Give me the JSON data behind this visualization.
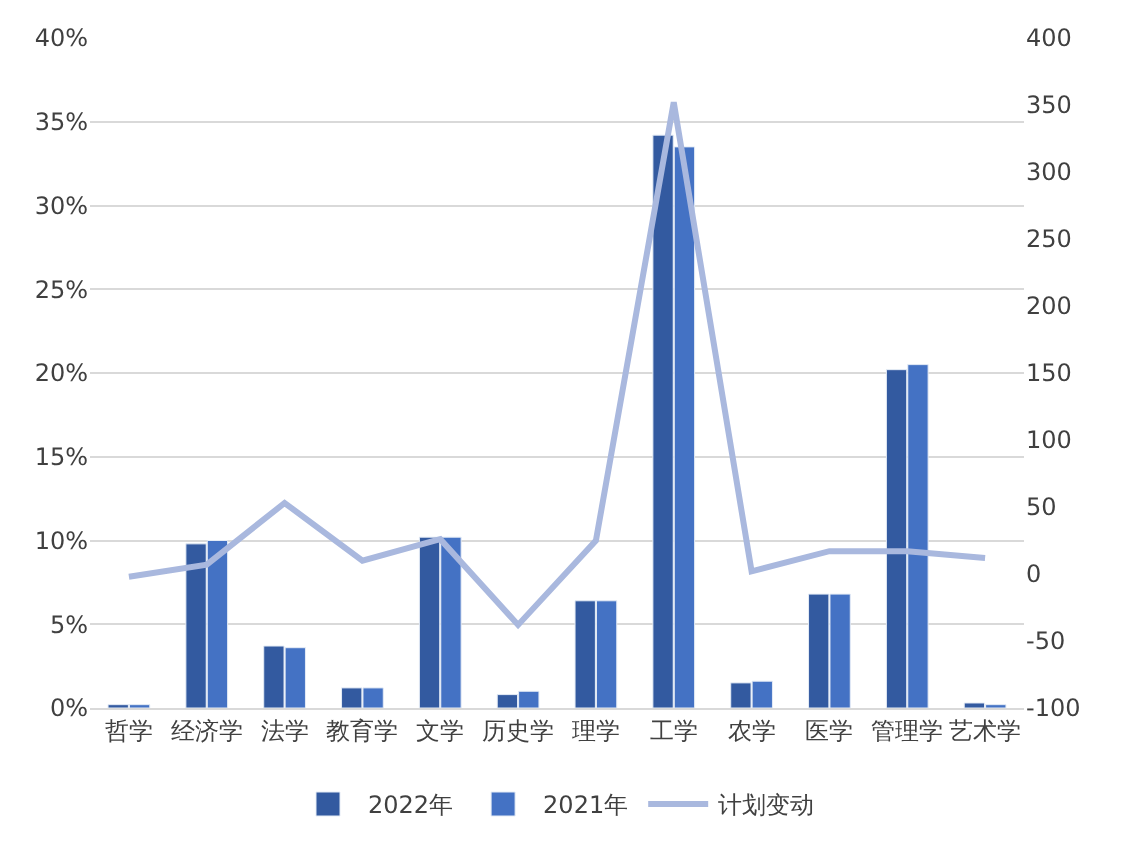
{
  "chart_data": {
    "type": "bar",
    "categories": [
      "哲学",
      "经济学",
      "法学",
      "教育学",
      "文学",
      "历史学",
      "理学",
      "工学",
      "农学",
      "医学",
      "管理学",
      "艺术学"
    ],
    "series": [
      {
        "name": "2022年",
        "color": "#335aa0",
        "values": [
          0.2,
          9.8,
          3.7,
          1.2,
          10.2,
          0.8,
          6.4,
          34.2,
          1.5,
          6.8,
          20.2,
          0.3
        ]
      },
      {
        "name": "2021年",
        "color": "#4472c4",
        "values": [
          0.2,
          10.0,
          3.6,
          1.2,
          10.2,
          1.0,
          6.4,
          33.5,
          1.6,
          6.8,
          20.5,
          0.2
        ]
      },
      {
        "name": "计划变动",
        "type": "line",
        "axis": "y2",
        "color": "#a9b8de",
        "values": [
          -2,
          7,
          53,
          10,
          26,
          -38,
          25,
          352,
          2,
          17,
          17,
          12
        ]
      }
    ],
    "ylim": [
      0,
      40
    ],
    "yticks": [
      {
        "value": 0,
        "label": "0%"
      },
      {
        "value": 5,
        "label": "5%"
      },
      {
        "value": 10,
        "label": "10%"
      },
      {
        "value": 15,
        "label": "15%"
      },
      {
        "value": 20,
        "label": "20%"
      },
      {
        "value": 25,
        "label": "25%"
      },
      {
        "value": 30,
        "label": "30%"
      },
      {
        "value": 35,
        "label": "35%"
      },
      {
        "value": 40,
        "label": "40%"
      }
    ],
    "y2lim": [
      -100,
      400
    ],
    "y2ticks": [
      -100,
      -50,
      0,
      50,
      100,
      150,
      200,
      250,
      300,
      350,
      400
    ],
    "grid": "y",
    "legend": "bottom",
    "marker": "none",
    "line_style": "solid"
  }
}
